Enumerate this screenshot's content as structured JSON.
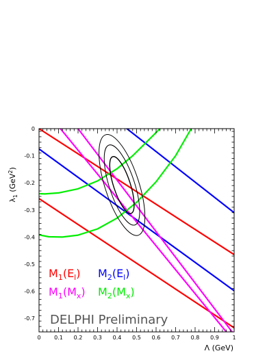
{
  "chart_data": {
    "type": "line",
    "xlabel": "Λ (GeV)",
    "ylabel_base": "λ",
    "ylabel_sub": "1",
    "ylabel_unit": "(GeV",
    "ylabel_sup": "2",
    "ylabel_close": ")",
    "xlim": [
      0,
      1
    ],
    "ylim": [
      -0.75,
      0
    ],
    "x_ticks": [
      {
        "value": 0,
        "label": "0"
      },
      {
        "value": 0.1,
        "label": "0.1"
      },
      {
        "value": 0.2,
        "label": "0.2"
      },
      {
        "value": 0.3,
        "label": "0.3"
      },
      {
        "value": 0.4,
        "label": "0.4"
      },
      {
        "value": 0.5,
        "label": "0.5"
      },
      {
        "value": 0.6,
        "label": "0.6"
      },
      {
        "value": 0.7,
        "label": "0.7"
      },
      {
        "value": 0.8,
        "label": "0.8"
      },
      {
        "value": 0.9,
        "label": "0.9"
      },
      {
        "value": 1,
        "label": "1"
      }
    ],
    "y_ticks": [
      {
        "value": 0,
        "label": "0"
      },
      {
        "value": -0.1,
        "label": "-0.1"
      },
      {
        "value": -0.2,
        "label": "-0.2"
      },
      {
        "value": -0.3,
        "label": "-0.3"
      },
      {
        "value": -0.4,
        "label": "-0.4"
      },
      {
        "value": -0.5,
        "label": "-0.5"
      },
      {
        "value": -0.6,
        "label": "-0.6"
      },
      {
        "value": -0.7,
        "label": "-0.7"
      }
    ],
    "colors": {
      "M1_El": "#ff0000",
      "M2_El": "#0000ff",
      "M1_Mx": "#ff00ff",
      "M2_Mx": "#00ee00",
      "contour": "#000000"
    },
    "series": [
      {
        "key": "M1_El",
        "points": [
          [
            0.0,
            0.0
          ],
          [
            1.0,
            -0.465
          ]
        ]
      },
      {
        "key": "M1_El",
        "points": [
          [
            0.0,
            -0.258
          ],
          [
            1.0,
            -0.735
          ]
        ]
      },
      {
        "key": "M2_El",
        "points": [
          [
            0.0,
            -0.075
          ],
          [
            1.0,
            -0.598
          ]
        ]
      },
      {
        "key": "M2_El",
        "points": [
          [
            0.45,
            0.0
          ],
          [
            1.0,
            -0.31
          ]
        ]
      },
      {
        "key": "M1_Mx",
        "points": [
          [
            0.11,
            0.0
          ],
          [
            0.96,
            -0.75
          ]
        ]
      },
      {
        "key": "M1_Mx",
        "points": [
          [
            0.2,
            0.0
          ],
          [
            0.99,
            -0.75
          ]
        ]
      },
      {
        "key": "M2_Mx",
        "points": [
          [
            0.0,
            -0.24
          ],
          [
            0.03,
            -0.241
          ],
          [
            0.1,
            -0.237
          ],
          [
            0.2,
            -0.222
          ],
          [
            0.3,
            -0.193
          ],
          [
            0.4,
            -0.148
          ],
          [
            0.48,
            -0.1
          ],
          [
            0.55,
            -0.05
          ],
          [
            0.62,
            0.0
          ]
        ]
      },
      {
        "key": "M2_Mx",
        "points": [
          [
            0.0,
            -0.392
          ],
          [
            0.05,
            -0.399
          ],
          [
            0.12,
            -0.4
          ],
          [
            0.2,
            -0.393
          ],
          [
            0.3,
            -0.37
          ],
          [
            0.4,
            -0.33
          ],
          [
            0.5,
            -0.272
          ],
          [
            0.6,
            -0.196
          ],
          [
            0.7,
            -0.1
          ],
          [
            0.78,
            0.0
          ]
        ]
      }
    ],
    "contours": [
      {
        "cx": 0.425,
        "cy": -0.208,
        "a": 0.043,
        "b": 0.11,
        "angle_deg": 18
      },
      {
        "cx": 0.425,
        "cy": -0.208,
        "a": 0.065,
        "b": 0.155,
        "angle_deg": 18
      },
      {
        "cx": 0.425,
        "cy": -0.208,
        "a": 0.087,
        "b": 0.195,
        "angle_deg": 18
      }
    ],
    "legend": [
      {
        "key": "M1_El",
        "base": "M",
        "sub": "1",
        "arg_base": "E",
        "arg_sub": "l"
      },
      {
        "key": "M2_El",
        "base": "M",
        "sub": "2",
        "arg_base": "E",
        "arg_sub": "l"
      },
      {
        "key": "M1_Mx",
        "base": "M",
        "sub": "1",
        "arg_base": "M",
        "arg_sub": "x"
      },
      {
        "key": "M2_Mx",
        "base": "M",
        "sub": "2",
        "arg_base": "M",
        "arg_sub": "x"
      }
    ],
    "annotation": "DELPHI Preliminary"
  }
}
